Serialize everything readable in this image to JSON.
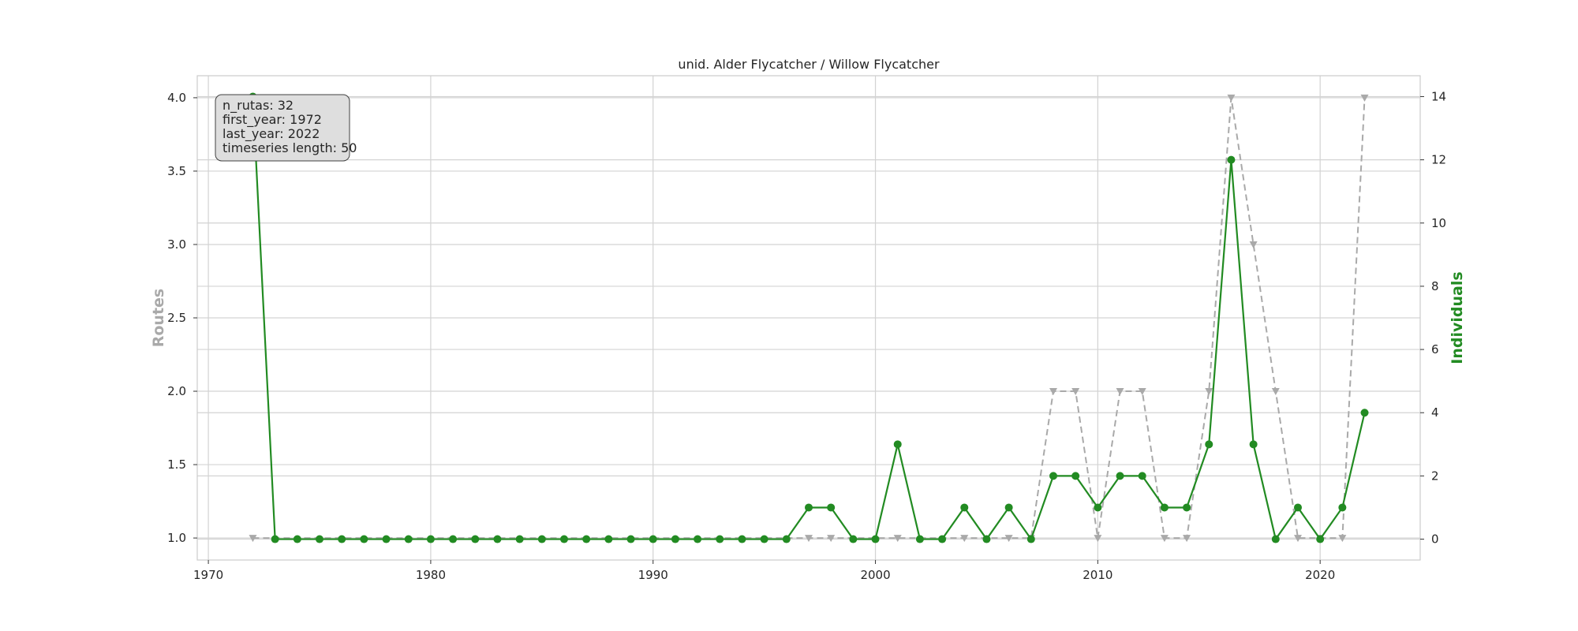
{
  "chart_data": {
    "type": "line",
    "title": "unid. Alder Flycatcher / Willow Flycatcher",
    "xlabel": "",
    "ylabel_left": "Routes",
    "ylabel_right": "Individuals",
    "xlim": [
      1969.5,
      2024.5
    ],
    "ylim_left": [
      0.85,
      4.15
    ],
    "ylim_right": [
      -0.66,
      14.66
    ],
    "x_ticks": [
      1970,
      1980,
      1990,
      2000,
      2010,
      2020
    ],
    "y_left_ticks": [
      "1.0",
      "1.5",
      "2.0",
      "2.5",
      "3.0",
      "3.5",
      "4.0"
    ],
    "y_right_ticks": [
      "0",
      "2",
      "4",
      "6",
      "8",
      "10",
      "12",
      "14"
    ],
    "grid": true,
    "colors": {
      "routes": "#a9a9a9",
      "individuals": "#228b22",
      "grid": "#d3d3d3",
      "frame": "#cccccc"
    },
    "series": [
      {
        "name": "Routes",
        "axis": "left",
        "style": "dashed-triangle",
        "points": [
          [
            1972,
            1
          ],
          [
            1997,
            1
          ],
          [
            1998,
            1
          ],
          [
            2001,
            1
          ],
          [
            2004,
            1
          ],
          [
            2006,
            1
          ],
          [
            2007,
            1
          ],
          [
            2008,
            2
          ],
          [
            2009,
            2
          ],
          [
            2010,
            1
          ],
          [
            2011,
            2
          ],
          [
            2012,
            2
          ],
          [
            2013,
            1
          ],
          [
            2014,
            1
          ],
          [
            2015,
            2
          ],
          [
            2016,
            4
          ],
          [
            2017,
            3
          ],
          [
            2018,
            2
          ],
          [
            2019,
            1
          ],
          [
            2020,
            1
          ],
          [
            2021,
            1
          ],
          [
            2022,
            4
          ]
        ]
      },
      {
        "name": "Individuals",
        "axis": "right",
        "style": "solid-circle",
        "points": [
          [
            1972,
            14
          ],
          [
            1973,
            0
          ],
          [
            1974,
            0
          ],
          [
            1975,
            0
          ],
          [
            1976,
            0
          ],
          [
            1977,
            0
          ],
          [
            1978,
            0
          ],
          [
            1979,
            0
          ],
          [
            1980,
            0
          ],
          [
            1981,
            0
          ],
          [
            1982,
            0
          ],
          [
            1983,
            0
          ],
          [
            1984,
            0
          ],
          [
            1985,
            0
          ],
          [
            1986,
            0
          ],
          [
            1987,
            0
          ],
          [
            1988,
            0
          ],
          [
            1989,
            0
          ],
          [
            1990,
            0
          ],
          [
            1991,
            0
          ],
          [
            1992,
            0
          ],
          [
            1993,
            0
          ],
          [
            1994,
            0
          ],
          [
            1995,
            0
          ],
          [
            1996,
            0
          ],
          [
            1997,
            1
          ],
          [
            1998,
            1
          ],
          [
            1999,
            0
          ],
          [
            2000,
            0
          ],
          [
            2001,
            3
          ],
          [
            2002,
            0
          ],
          [
            2003,
            0
          ],
          [
            2004,
            1
          ],
          [
            2005,
            0
          ],
          [
            2006,
            1
          ],
          [
            2007,
            0
          ],
          [
            2008,
            2
          ],
          [
            2009,
            2
          ],
          [
            2010,
            1
          ],
          [
            2011,
            2
          ],
          [
            2012,
            2
          ],
          [
            2013,
            1
          ],
          [
            2014,
            1
          ],
          [
            2015,
            3
          ],
          [
            2016,
            12
          ],
          [
            2017,
            3
          ],
          [
            2018,
            0
          ],
          [
            2019,
            1
          ],
          [
            2020,
            0
          ],
          [
            2021,
            1
          ],
          [
            2022,
            4
          ]
        ]
      }
    ],
    "annotation": {
      "lines": [
        "n_rutas: 32",
        "first_year: 1972",
        "last_year: 2022",
        "timeseries length: 50"
      ]
    }
  }
}
